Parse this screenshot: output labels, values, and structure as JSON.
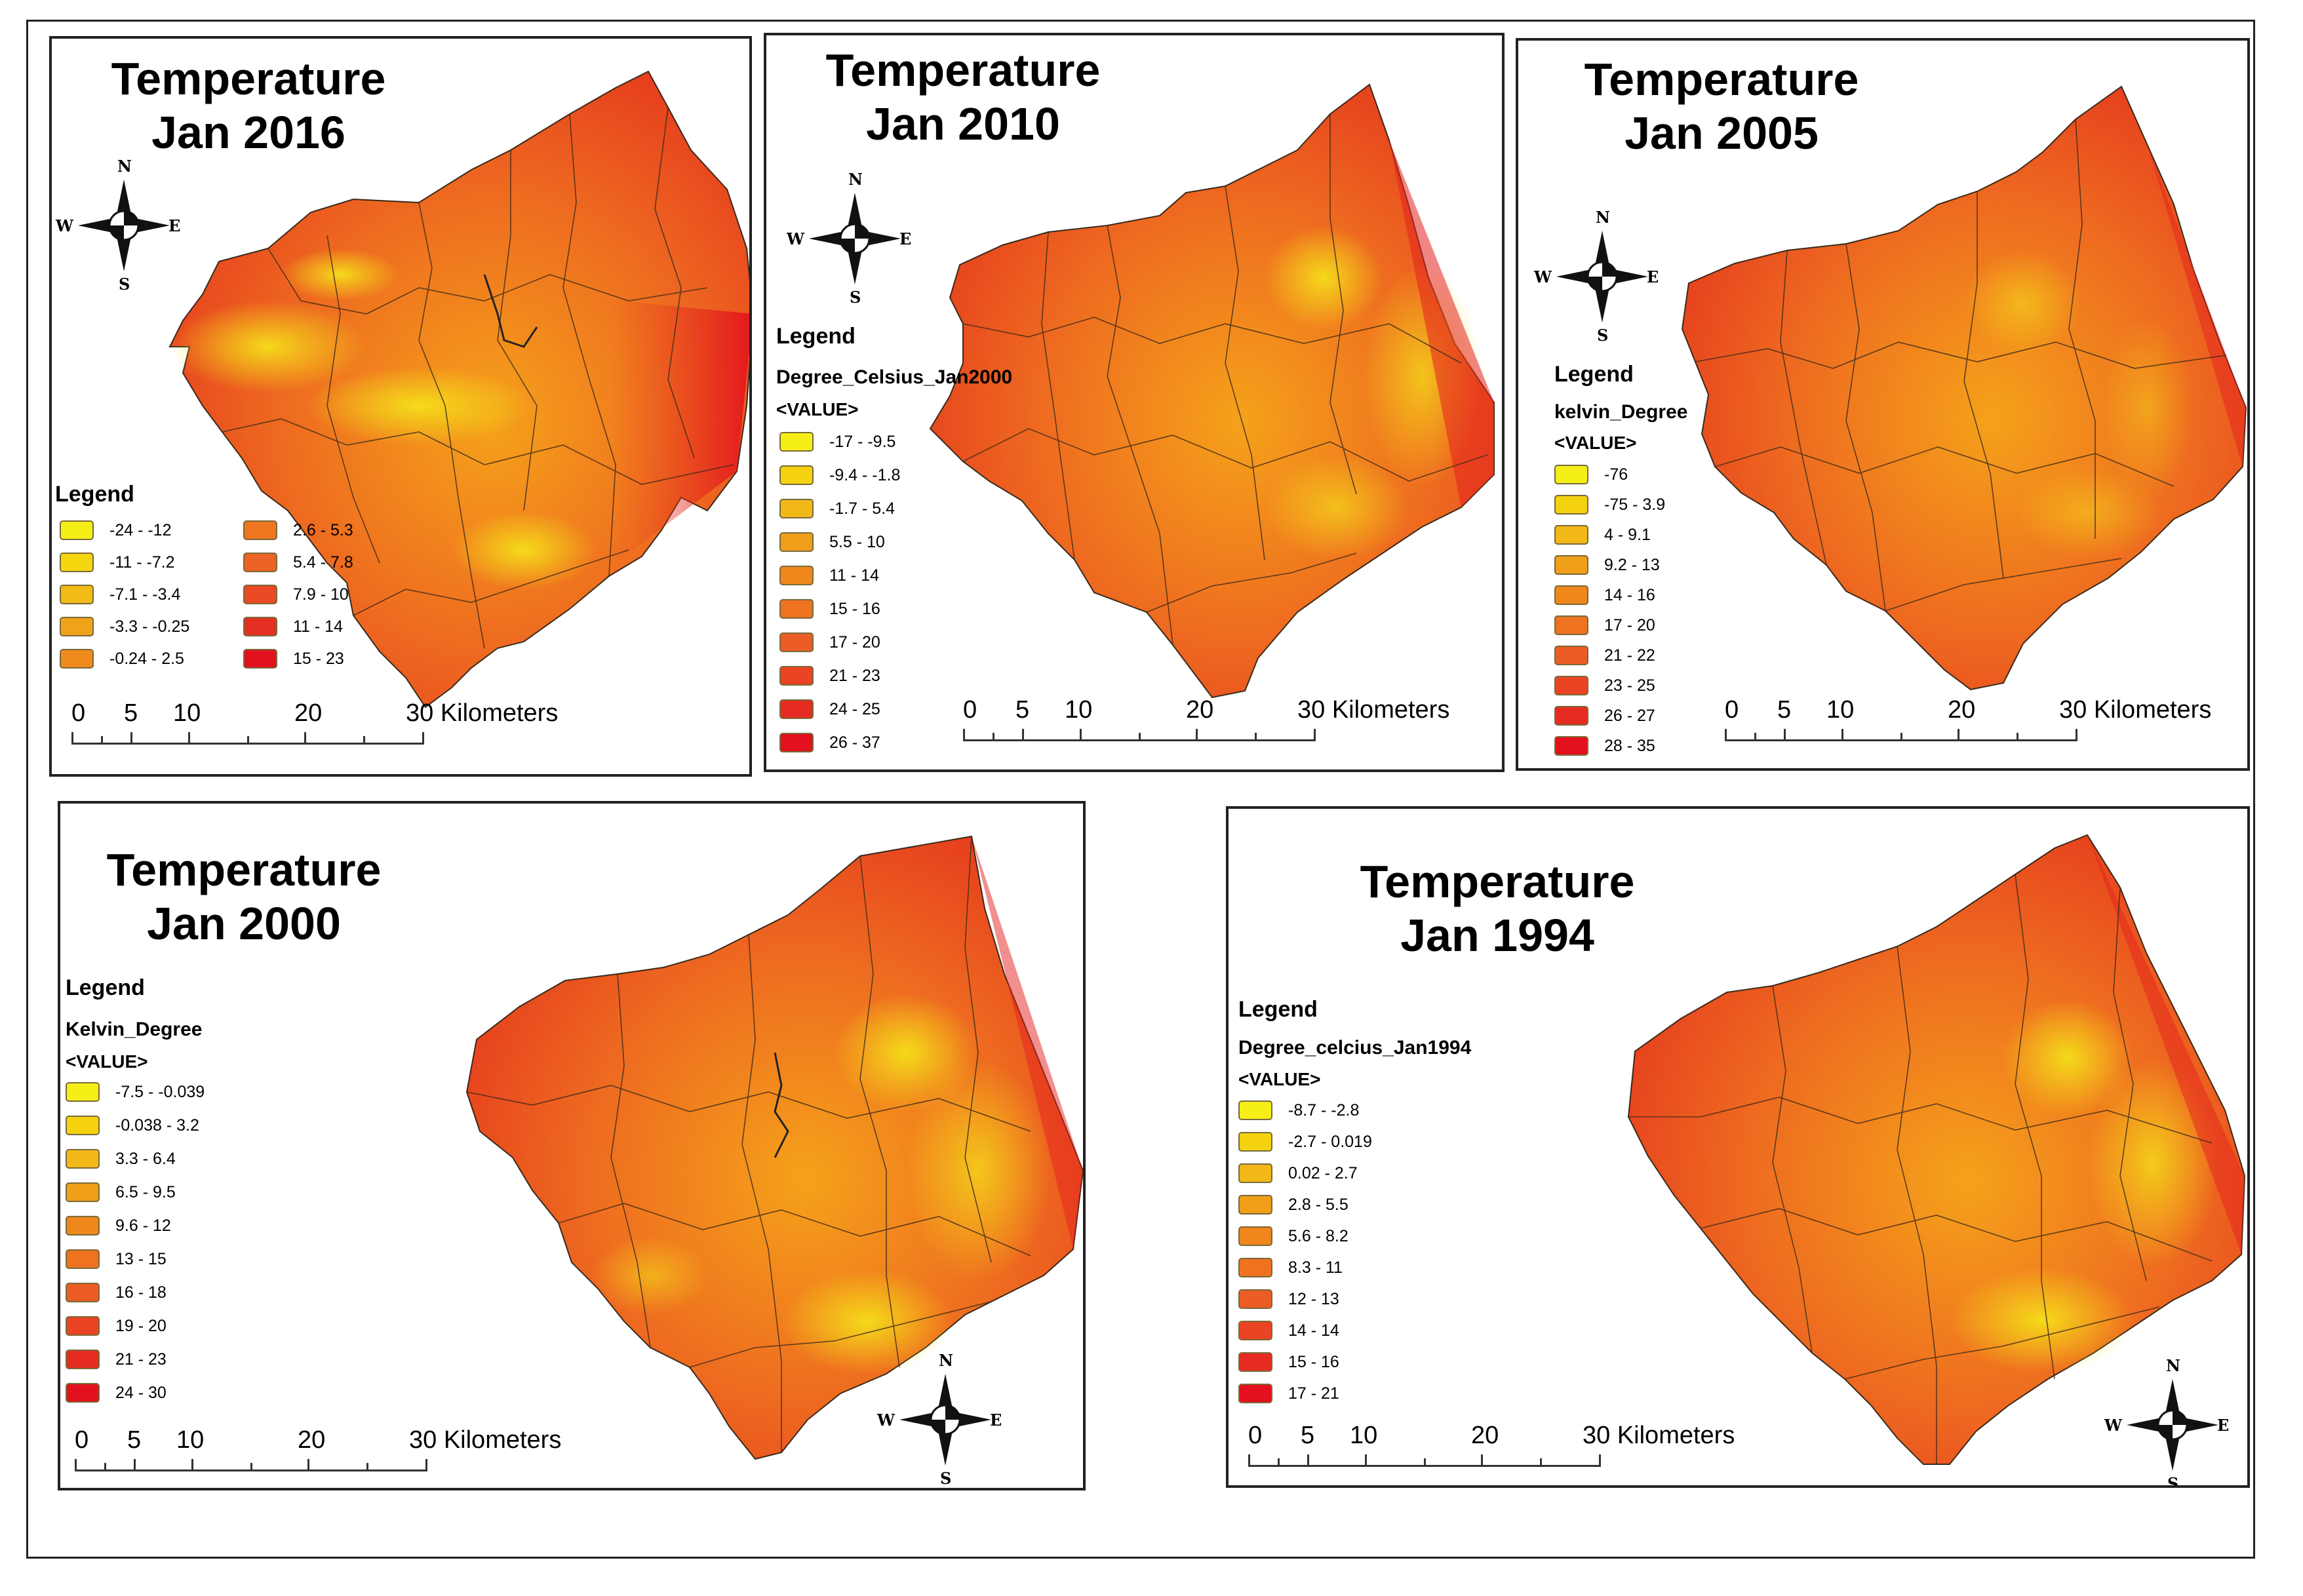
{
  "panels": [
    {
      "id": "jan2016",
      "title_line1": "Temperature",
      "title_line2": "Jan 2016",
      "legend_title": "Legend",
      "legend_items": [
        {
          "label": "-24 - -12",
          "color": "#f5ef17"
        },
        {
          "label": "-11 - -7.2",
          "color": "#f4d70f"
        },
        {
          "label": "-7.1 - -3.4",
          "color": "#f2bb18"
        },
        {
          "label": "-3.3 - -0.25",
          "color": "#f0a21a"
        },
        {
          "label": "-0.24 - 2.5",
          "color": "#ef8b1c"
        },
        {
          "label": "2.6 - 5.3",
          "color": "#ee7720"
        },
        {
          "label": "5.4 - 7.8",
          "color": "#ec6325"
        },
        {
          "label": "7.9 - 10",
          "color": "#ea4a24"
        },
        {
          "label": "11 - 14",
          "color": "#e62f23"
        },
        {
          "label": "15 - 23",
          "color": "#e3101e"
        }
      ],
      "scale_labels": [
        "0",
        "5",
        "10",
        "20",
        "30 Kilometers"
      ]
    },
    {
      "id": "jan2010",
      "title_line1": "Temperature",
      "title_line2": "Jan 2010",
      "legend_title": "Legend",
      "legend_field": "Degree_Celsius_Jan2000",
      "legend_value": "<VALUE>",
      "legend_items": [
        {
          "label": "-17 - -9.5",
          "color": "#f5ef17"
        },
        {
          "label": "-9.4 - -1.8",
          "color": "#f4d20f"
        },
        {
          "label": "-1.7 - 5.4",
          "color": "#f2b818"
        },
        {
          "label": "5.5 - 10",
          "color": "#f09f1a"
        },
        {
          "label": "11 - 14",
          "color": "#ef871c"
        },
        {
          "label": "15 - 16",
          "color": "#ee7220"
        },
        {
          "label": "17 - 20",
          "color": "#ec5c25"
        },
        {
          "label": "21 - 23",
          "color": "#ea4424"
        },
        {
          "label": "24 - 25",
          "color": "#e62b23"
        },
        {
          "label": "26 - 37",
          "color": "#e3101e"
        }
      ],
      "scale_labels": [
        "0",
        "5",
        "10",
        "20",
        "30 Kilometers"
      ]
    },
    {
      "id": "jan2005",
      "title_line1": "Temperature",
      "title_line2": "Jan 2005",
      "legend_title": "Legend",
      "legend_field": "kelvin_Degree",
      "legend_value": "<VALUE>",
      "legend_items": [
        {
          "label": "-76",
          "color": "#f5ef17"
        },
        {
          "label": "-75 - 3.9",
          "color": "#f4d20f"
        },
        {
          "label": "4 - 9.1",
          "color": "#f2b818"
        },
        {
          "label": "9.2 - 13",
          "color": "#f09f1a"
        },
        {
          "label": "14 - 16",
          "color": "#ef871c"
        },
        {
          "label": "17 - 20",
          "color": "#ee7220"
        },
        {
          "label": "21 - 22",
          "color": "#ec5c25"
        },
        {
          "label": "23 - 25",
          "color": "#ea4424"
        },
        {
          "label": "26 - 27",
          "color": "#e62b23"
        },
        {
          "label": "28 - 35",
          "color": "#e3101e"
        }
      ],
      "scale_labels": [
        "0",
        "5",
        "10",
        "20",
        "30 Kilometers"
      ]
    },
    {
      "id": "jan2000",
      "title_line1": "Temperature",
      "title_line2": "Jan 2000",
      "legend_title": "Legend",
      "legend_field": "Kelvin_Degree",
      "legend_value": "<VALUE>",
      "legend_items": [
        {
          "label": "-7.5 - -0.039",
          "color": "#f5ef17"
        },
        {
          "label": "-0.038 - 3.2",
          "color": "#f4d20f"
        },
        {
          "label": "3.3 - 6.4",
          "color": "#f2b818"
        },
        {
          "label": "6.5 - 9.5",
          "color": "#f09f1a"
        },
        {
          "label": "9.6 - 12",
          "color": "#ef871c"
        },
        {
          "label": "13 - 15",
          "color": "#ee7220"
        },
        {
          "label": "16 - 18",
          "color": "#ec5c25"
        },
        {
          "label": "19 - 20",
          "color": "#ea4424"
        },
        {
          "label": "21 - 23",
          "color": "#e62b23"
        },
        {
          "label": "24 - 30",
          "color": "#e3101e"
        }
      ],
      "scale_labels": [
        "0",
        "5",
        "10",
        "20",
        "30 Kilometers"
      ]
    },
    {
      "id": "jan1994",
      "title_line1": "Temperature",
      "title_line2": "Jan 1994",
      "legend_title": "Legend",
      "legend_field": "Degree_celcius_Jan1994",
      "legend_value": "<VALUE>",
      "legend_items": [
        {
          "label": "-8.7 - -2.8",
          "color": "#f5ef17"
        },
        {
          "label": "-2.7 - 0.019",
          "color": "#f4d20f"
        },
        {
          "label": "0.02 - 2.7",
          "color": "#f2b818"
        },
        {
          "label": "2.8 - 5.5",
          "color": "#f09f1a"
        },
        {
          "label": "5.6 - 8.2",
          "color": "#ef871c"
        },
        {
          "label": "8.3 - 11",
          "color": "#ee7220"
        },
        {
          "label": "12 - 13",
          "color": "#ec5c25"
        },
        {
          "label": "14 - 14",
          "color": "#ea4424"
        },
        {
          "label": "15 - 16",
          "color": "#e62b23"
        },
        {
          "label": "17 - 21",
          "color": "#e3101e"
        }
      ],
      "scale_labels": [
        "0",
        "5",
        "10",
        "20",
        "30 Kilometers"
      ]
    }
  ],
  "compass": {
    "n": "N",
    "s": "S",
    "e": "E",
    "w": "W"
  },
  "colors": {
    "map_base": "#e8491f",
    "map_warm": "#f07a1c",
    "map_cool": "#f3c21a",
    "border": "#222222"
  }
}
